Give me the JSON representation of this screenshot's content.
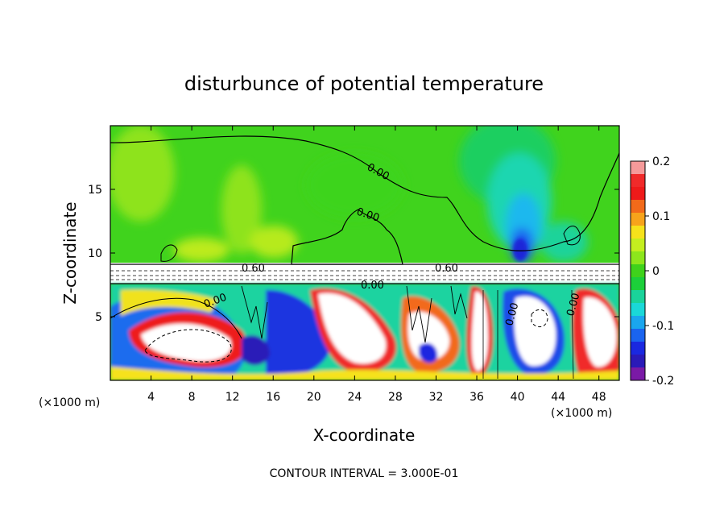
{
  "chart_data": {
    "type": "heatmap",
    "title": "disturbunce of potential temperature",
    "xlabel": "X-coordinate",
    "ylabel": "Z-coordinate",
    "x_unit_left": "(×1000 m)",
    "x_unit_right": "(×1000 m)",
    "x_range": [
      0,
      50
    ],
    "y_range": [
      0,
      20
    ],
    "x_ticks": [
      4,
      8,
      12,
      16,
      20,
      24,
      28,
      32,
      36,
      40,
      44,
      48
    ],
    "y_ticks": [
      5,
      10,
      15
    ],
    "colorbar": {
      "range": [
        -0.2,
        0.2
      ],
      "ticks": [
        "0.2",
        "0.1",
        "0",
        "-0.1",
        "-0.2"
      ],
      "colors": [
        "#f59a9a",
        "#f02a2a",
        "#ee1a1a",
        "#f26a1a",
        "#f7a31b",
        "#f6e21b",
        "#c4ee1f",
        "#8de61c",
        "#3fd21b",
        "#1ccf3a",
        "#1ad39a",
        "#1ad8d8",
        "#1aa6ee",
        "#1a64ef",
        "#1a28e0",
        "#2a1ab8",
        "#7a1aa6"
      ]
    },
    "contour_labels": [
      "0.00",
      "0.00",
      "0.60",
      "0.60",
      "0.00",
      "0.00",
      "0.00",
      "0.00"
    ],
    "footer": "CONTOUR INTERVAL = 3.000E-01"
  }
}
